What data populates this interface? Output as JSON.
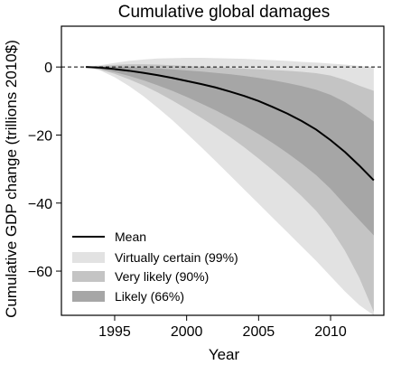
{
  "chart_data": {
    "type": "area",
    "title": "Cumulative global damages",
    "xlabel": "Year",
    "ylabel": "Cumulative GDP change (trillions 2010$)",
    "xlim": [
      1991.3,
      2013.7
    ],
    "ylim": [
      -73,
      12
    ],
    "x_ticks": [
      1995,
      2000,
      2005,
      2010
    ],
    "y_ticks": [
      0,
      -20,
      -40,
      -60
    ],
    "x_tick_labels": [
      "1995",
      "2000",
      "2005",
      "2010"
    ],
    "y_tick_labels": [
      "0",
      "−20",
      "−40",
      "−60"
    ],
    "reference_line": {
      "y": 0,
      "style": "dashed"
    },
    "grid": false,
    "legend_position": "lower-left",
    "colors": {
      "mean": "#000000",
      "band_99": "#e2e2e2",
      "band_90": "#c4c4c4",
      "band_66": "#a6a6a6"
    },
    "x": [
      1993,
      1994,
      1995,
      1996,
      1997,
      1998,
      1999,
      2000,
      2001,
      2002,
      2003,
      2004,
      2005,
      2006,
      2007,
      2008,
      2009,
      2010,
      2011,
      2012,
      2013
    ],
    "series": [
      {
        "name": "Mean",
        "type": "line",
        "values": [
          0,
          -0.2,
          -0.6,
          -1.1,
          -1.7,
          -2.4,
          -3.2,
          -4.1,
          -5.0,
          -6.0,
          -7.2,
          -8.5,
          -10.0,
          -11.8,
          -13.7,
          -15.9,
          -18.4,
          -21.5,
          -25.0,
          -29.0,
          -33.3
        ]
      },
      {
        "name": "Virtually certain (99%)",
        "type": "band",
        "upper": [
          0,
          0.5,
          1.2,
          1.8,
          2.2,
          2.5,
          2.6,
          2.7,
          2.7,
          2.6,
          2.5,
          2.4,
          2.2,
          2.0,
          1.8,
          1.5,
          1.3,
          1.0,
          0.7,
          0.3,
          0
        ],
        "lower": [
          0,
          -1.0,
          -3.0,
          -5.6,
          -8.6,
          -12.0,
          -15.6,
          -19.5,
          -23.5,
          -27.6,
          -31.8,
          -36.0,
          -40.2,
          -44.4,
          -48.6,
          -52.8,
          -57.0,
          -61.5,
          -66.0,
          -70.0,
          -73.0
        ]
      },
      {
        "name": "Very likely (90%)",
        "type": "band",
        "upper": [
          0,
          0.3,
          0.6,
          0.8,
          0.8,
          0.7,
          0.5,
          0.3,
          0.1,
          -0.1,
          -0.3,
          -0.5,
          -0.7,
          -0.9,
          -1.1,
          -1.4,
          -1.8,
          -2.5,
          -3.8,
          -5.5,
          -7.0
        ],
        "lower": [
          0,
          -0.8,
          -2.0,
          -3.6,
          -5.4,
          -7.5,
          -9.8,
          -12.3,
          -14.9,
          -17.6,
          -20.5,
          -23.6,
          -26.9,
          -30.4,
          -34.1,
          -38.0,
          -42.3,
          -47.5,
          -54.0,
          -62.0,
          -72.0
        ]
      },
      {
        "name": "Likely (66%)",
        "type": "band",
        "upper": [
          0,
          0.1,
          0.1,
          0.0,
          -0.2,
          -0.4,
          -0.7,
          -1.0,
          -1.3,
          -1.7,
          -2.1,
          -2.6,
          -3.2,
          -3.9,
          -4.7,
          -5.6,
          -6.7,
          -8.2,
          -10.3,
          -13.0,
          -16.0
        ],
        "lower": [
          0,
          -0.6,
          -1.5,
          -2.6,
          -3.9,
          -5.4,
          -7.0,
          -8.8,
          -10.7,
          -12.7,
          -14.9,
          -17.2,
          -19.7,
          -22.4,
          -25.3,
          -28.4,
          -31.8,
          -35.8,
          -40.5,
          -45.0,
          -49.5
        ]
      }
    ]
  }
}
